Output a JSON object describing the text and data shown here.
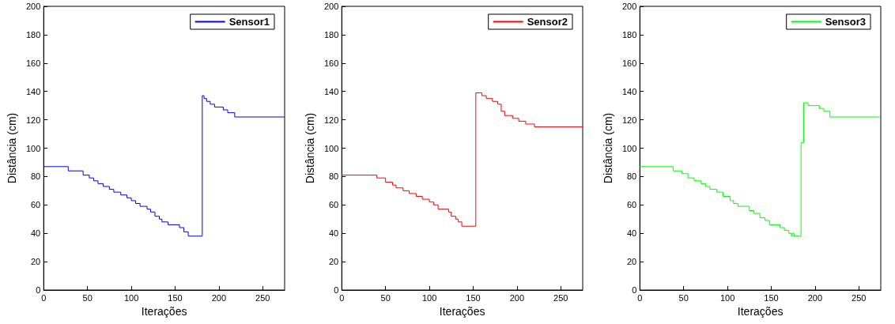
{
  "chart_data": [
    {
      "type": "step",
      "xlabel": "Iterações",
      "ylabel": "Distância (cm)",
      "xlim": [
        0,
        275
      ],
      "xticks": [
        0,
        50,
        100,
        150,
        200,
        250
      ],
      "ylim": [
        0,
        200
      ],
      "yticks": [
        0,
        20,
        40,
        60,
        80,
        100,
        120,
        140,
        160,
        180,
        200
      ],
      "legend": "top right",
      "grid": false,
      "series": [
        {
          "name": "Sensor1",
          "color": "#0000ff",
          "x": [
            0,
            28,
            45,
            52,
            57,
            62,
            68,
            75,
            80,
            88,
            95,
            100,
            105,
            110,
            118,
            122,
            127,
            132,
            135,
            142,
            155,
            160,
            165,
            181,
            183,
            186,
            190,
            195,
            205,
            210,
            218,
            275
          ],
          "values": [
            87,
            84,
            81,
            79,
            77,
            75,
            73,
            71,
            69,
            67,
            65,
            63,
            61,
            59,
            57,
            55,
            52,
            50,
            48,
            46,
            44,
            41,
            38,
            137,
            135,
            133,
            131,
            129,
            127,
            125,
            122,
            122
          ]
        }
      ]
    },
    {
      "type": "step",
      "xlabel": "Iterações",
      "ylabel": "Distância (cm)",
      "xlim": [
        0,
        275
      ],
      "xticks": [
        0,
        50,
        100,
        150,
        200,
        250
      ],
      "ylim": [
        0,
        200
      ],
      "yticks": [
        0,
        20,
        40,
        60,
        80,
        100,
        120,
        140,
        160,
        180,
        200
      ],
      "legend": "top right",
      "grid": false,
      "series": [
        {
          "name": "Sensor2",
          "color": "#ff0000",
          "x": [
            0,
            40,
            50,
            58,
            62,
            70,
            77,
            85,
            92,
            100,
            105,
            110,
            122,
            125,
            130,
            133,
            137,
            153,
            160,
            165,
            172,
            178,
            182,
            186,
            195,
            202,
            210,
            220,
            275
          ],
          "values": [
            81,
            79,
            76,
            74,
            72,
            70,
            68,
            66,
            64,
            62,
            60,
            57,
            55,
            52,
            50,
            48,
            45,
            139,
            137,
            135,
            133,
            131,
            126,
            123,
            121,
            119,
            117,
            115,
            115
          ]
        }
      ]
    },
    {
      "type": "step",
      "xlabel": "Iterações",
      "ylabel": "Distância (cm)",
      "xlim": [
        0,
        275
      ],
      "xticks": [
        0,
        50,
        100,
        150,
        200,
        250
      ],
      "ylim": [
        0,
        200
      ],
      "yticks": [
        0,
        20,
        40,
        60,
        80,
        100,
        120,
        140,
        160,
        180,
        200
      ],
      "legend": "top right",
      "grid": false,
      "series": [
        {
          "name": "Sensor3",
          "color": "#00ff00",
          "x": [
            0,
            38,
            48,
            55,
            62,
            70,
            75,
            80,
            88,
            95,
            103,
            107,
            112,
            125,
            130,
            137,
            143,
            148,
            160,
            165,
            170,
            173,
            174,
            176,
            184,
            187,
            192,
            205,
            210,
            217,
            275
          ],
          "values": [
            87,
            84,
            82,
            79,
            77,
            75,
            73,
            71,
            69,
            66,
            63,
            61,
            59,
            56,
            54,
            51,
            49,
            46,
            44,
            42,
            40,
            38,
            40,
            38,
            104,
            132,
            130,
            128,
            126,
            122,
            122
          ]
        }
      ]
    }
  ]
}
